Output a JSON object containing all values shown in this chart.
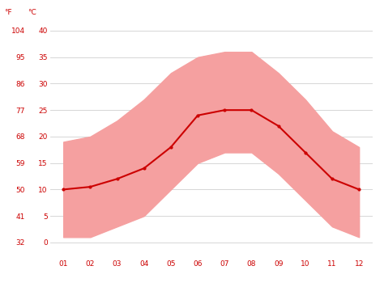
{
  "months": [
    1,
    2,
    3,
    4,
    5,
    6,
    7,
    8,
    9,
    10,
    11,
    12
  ],
  "month_labels": [
    "01",
    "02",
    "03",
    "04",
    "05",
    "06",
    "07",
    "08",
    "09",
    "10",
    "11",
    "12"
  ],
  "avg_temp_c": [
    10,
    10.5,
    12,
    14,
    18,
    24,
    25,
    25,
    22,
    17,
    12,
    10
  ],
  "max_temp_c": [
    19,
    20,
    23,
    27,
    32,
    35,
    36,
    36,
    32,
    27,
    21,
    18
  ],
  "min_temp_c": [
    1,
    1,
    3,
    5,
    10,
    15,
    17,
    17,
    13,
    8,
    3,
    1
  ],
  "yticks_c": [
    0,
    5,
    10,
    15,
    20,
    25,
    30,
    35,
    40
  ],
  "yticks_f": [
    32,
    41,
    50,
    59,
    68,
    77,
    86,
    95,
    104
  ],
  "ylim_c": [
    -3,
    42
  ],
  "line_color": "#cc0000",
  "band_color": "#f5a0a0",
  "grid_color": "#d0d0d0",
  "bg_color": "#ffffff",
  "label_color": "#cc0000",
  "tick_fontsize": 6.5,
  "header_fontsize": 6.5
}
